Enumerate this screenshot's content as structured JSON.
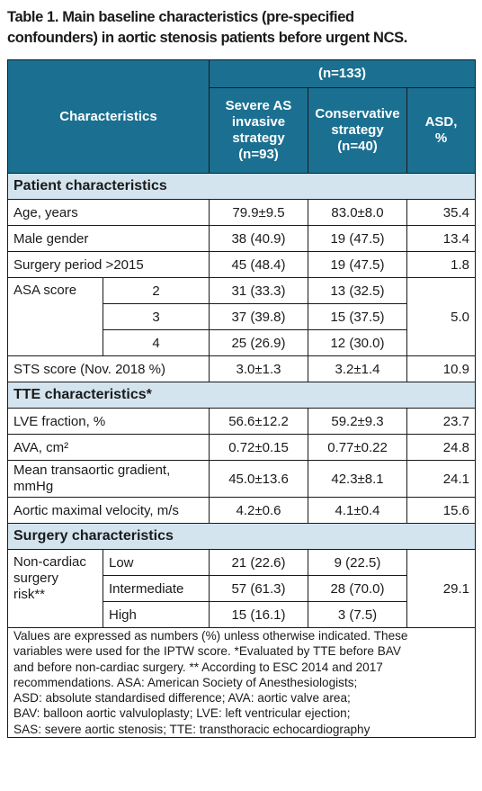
{
  "title": {
    "line1": "Table 1. Main baseline characteristics (pre-specified",
    "line2": "confounders) in aortic stenosis patients before urgent NCS."
  },
  "header": {
    "characteristics": "Characteristics",
    "n_total": "(n=133)",
    "invasive": [
      "Severe AS",
      "invasive",
      "strategy",
      "(n=93)"
    ],
    "conservative": [
      "Conservative",
      "strategy",
      "(n=40)"
    ],
    "asd": [
      "ASD,",
      "%"
    ]
  },
  "sections": {
    "patient": "Patient characteristics",
    "tte": "TTE characteristics*",
    "surgery": "Surgery characteristics"
  },
  "rows": {
    "age": {
      "label": "Age, years",
      "invasive": "79.9±9.5",
      "conservative": "83.0±8.0",
      "asd": "35.4"
    },
    "male": {
      "label": "Male gender",
      "invasive": "38 (40.9)",
      "conservative": "19 (47.5)",
      "asd": "13.4"
    },
    "period": {
      "label": "Surgery period >2015",
      "invasive": "45 (48.4)",
      "conservative": "19 (47.5)",
      "asd": "1.8"
    },
    "asa": {
      "label": "ASA score",
      "asd": "5.0",
      "levels": [
        {
          "level": "2",
          "invasive": "31 (33.3)",
          "conservative": "13 (32.5)"
        },
        {
          "level": "3",
          "invasive": "37 (39.8)",
          "conservative": "15 (37.5)"
        },
        {
          "level": "4",
          "invasive": "25 (26.9)",
          "conservative": "12 (30.0)"
        }
      ]
    },
    "sts": {
      "label": "STS score (Nov. 2018 %)",
      "invasive": "3.0±1.3",
      "conservative": "3.2±1.4",
      "asd": "10.9"
    },
    "lve": {
      "label": "LVE fraction, %",
      "invasive": "56.6±12.2",
      "conservative": "59.2±9.3",
      "asd": "23.7"
    },
    "ava": {
      "label": "AVA, cm²",
      "invasive": "0.72±0.15",
      "conservative": "0.77±0.22",
      "asd": "24.8"
    },
    "gradient": {
      "label_line1": "Mean transaortic gradient,",
      "label_line2": "mmHg",
      "invasive": "45.0±13.6",
      "conservative": "42.3±8.1",
      "asd": "24.1"
    },
    "velocity": {
      "label": "Aortic maximal velocity, m/s",
      "invasive": "4.2±0.6",
      "conservative": "4.1±0.4",
      "asd": "15.6"
    },
    "risk": {
      "label": [
        "Non-cardiac",
        "surgery",
        "risk**"
      ],
      "asd": "29.1",
      "levels": [
        {
          "level": "Low",
          "invasive": "21 (22.6)",
          "conservative": "9 (22.5)"
        },
        {
          "level": "Intermediate",
          "invasive": "57 (61.3)",
          "conservative": "28 (70.0)"
        },
        {
          "level": "High",
          "invasive": "15 (16.1)",
          "conservative": "3 (7.5)"
        }
      ]
    }
  },
  "footnote": [
    "Values are expressed as numbers (%) unless otherwise indicated. These",
    "variables were used for the IPTW score. *Evaluated by TTE before BAV",
    "and before non-cardiac surgery. ** According to ESC 2014 and 2017",
    "recommendations. ASA: American Society of Anesthesiologists;",
    "ASD: absolute standardised difference; AVA: aortic valve area;",
    "BAV: balloon aortic valvuloplasty; LVE: left ventricular ejection;",
    "SAS: severe aortic stenosis; TTE: transthoracic echocardiography"
  ],
  "colors": {
    "header_bg": "#1b7091",
    "section_bg": "#d3e4ef",
    "text": "#1a1a1a"
  }
}
